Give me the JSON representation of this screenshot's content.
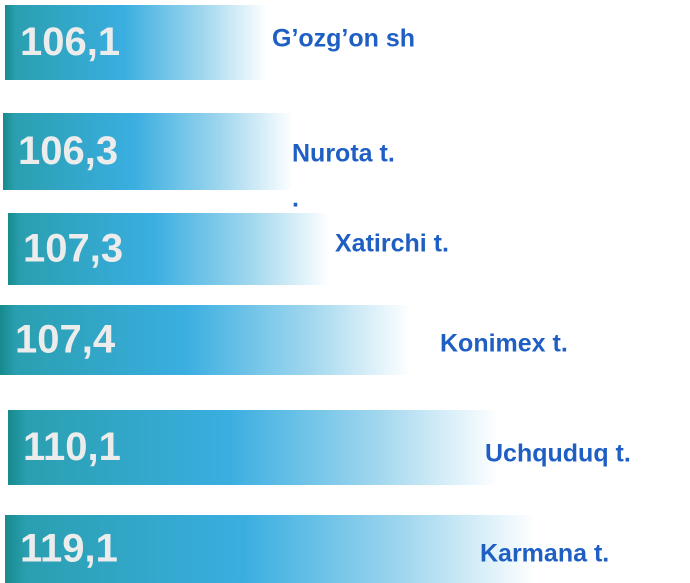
{
  "items": [
    {
      "value": "106,1",
      "label": "G’ozg’on sh"
    },
    {
      "value": "106,3",
      "label": "Nurota t.",
      "extra": "."
    },
    {
      "value": "107,3",
      "label": "Xatirchi t."
    },
    {
      "value": "107,4",
      "label": "Konimex t."
    },
    {
      "value": "110,1",
      "label": "Uchquduq t."
    },
    {
      "value": "119,1",
      "label": "Karmana t."
    }
  ]
}
